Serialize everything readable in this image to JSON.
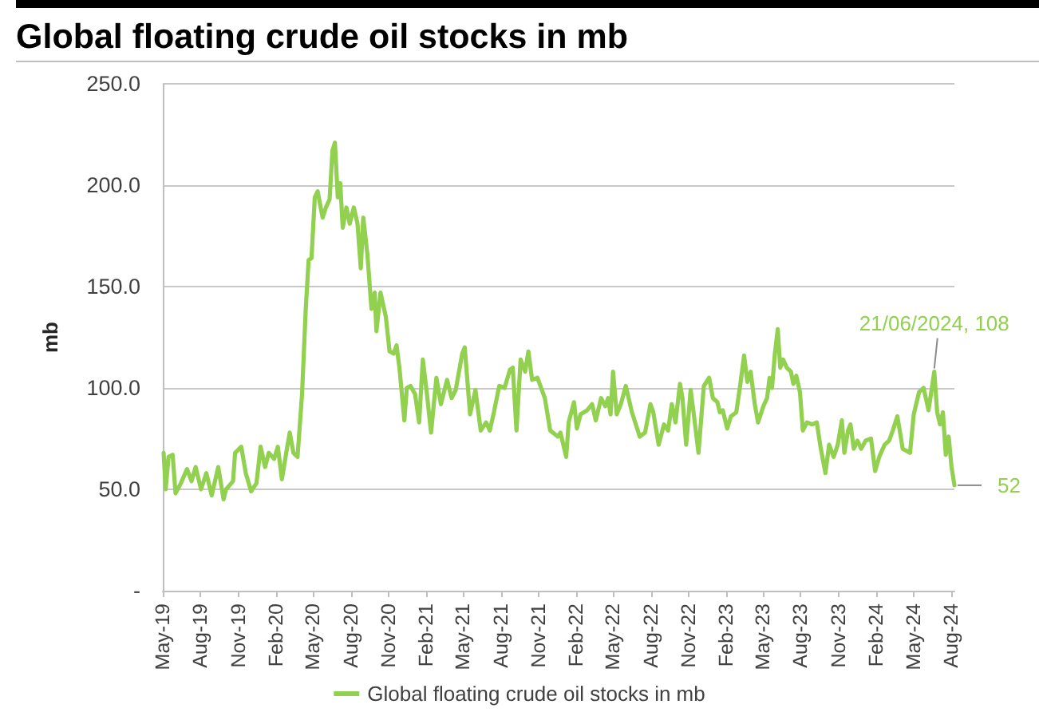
{
  "chart_data": {
    "type": "line",
    "title": "Global floating crude oil stocks in mb",
    "ylabel": "mb",
    "x": [
      "2019-05-03",
      "2019-05-08",
      "2019-05-15",
      "2019-05-25",
      "2019-06-01",
      "2019-06-14",
      "2019-06-29",
      "2019-07-10",
      "2019-07-20",
      "2019-08-02",
      "2019-08-15",
      "2019-08-28",
      "2019-09-13",
      "2019-09-26",
      "2019-10-02",
      "2019-10-19",
      "2019-10-24",
      "2019-11-08",
      "2019-11-19",
      "2019-12-02",
      "2019-12-15",
      "2019-12-25",
      "2020-01-05",
      "2020-01-14",
      "2020-01-27",
      "2020-02-05",
      "2020-02-15",
      "2020-02-28",
      "2020-03-05",
      "2020-03-14",
      "2020-03-24",
      "2020-04-04",
      "2020-04-13",
      "2020-04-20",
      "2020-04-27",
      "2020-05-05",
      "2020-05-12",
      "2020-05-24",
      "2020-06-01",
      "2020-06-10",
      "2020-06-17",
      "2020-06-23",
      "2020-06-30",
      "2020-07-06",
      "2020-07-12",
      "2020-07-21",
      "2020-07-29",
      "2020-08-08",
      "2020-08-17",
      "2020-08-25",
      "2020-08-31",
      "2020-09-10",
      "2020-09-20",
      "2020-09-28",
      "2020-10-02",
      "2020-10-12",
      "2020-10-25",
      "2020-11-03",
      "2020-11-13",
      "2020-11-20",
      "2020-11-27",
      "2020-12-09",
      "2020-12-15",
      "2020-12-24",
      "2021-01-04",
      "2021-01-14",
      "2021-01-23",
      "2021-02-02",
      "2021-02-12",
      "2021-02-25",
      "2021-03-08",
      "2021-03-23",
      "2021-04-03",
      "2021-04-13",
      "2021-04-29",
      "2021-05-05",
      "2021-05-18",
      "2021-05-31",
      "2021-06-13",
      "2021-06-26",
      "2021-07-05",
      "2021-07-15",
      "2021-07-28",
      "2021-08-10",
      "2021-08-23",
      "2021-08-30",
      "2021-09-08",
      "2021-09-18",
      "2021-09-29",
      "2021-10-07",
      "2021-10-16",
      "2021-10-29",
      "2021-11-16",
      "2021-11-29",
      "2021-12-18",
      "2021-12-24",
      "2022-01-07",
      "2022-01-13",
      "2022-01-26",
      "2022-02-02",
      "2022-02-11",
      "2022-02-27",
      "2022-03-11",
      "2022-03-20",
      "2022-04-02",
      "2022-04-12",
      "2022-04-19",
      "2022-04-25",
      "2022-05-01",
      "2022-05-10",
      "2022-05-20",
      "2022-06-01",
      "2022-06-16",
      "2022-07-05",
      "2022-07-18",
      "2022-07-31",
      "2022-08-07",
      "2022-08-20",
      "2022-09-02",
      "2022-09-12",
      "2022-09-21",
      "2022-09-30",
      "2022-10-11",
      "2022-10-17",
      "2022-10-26",
      "2022-11-06",
      "2022-11-13",
      "2022-11-25",
      "2022-12-08",
      "2022-12-21",
      "2022-12-30",
      "2023-01-10",
      "2023-01-16",
      "2023-01-23",
      "2023-02-03",
      "2023-02-12",
      "2023-02-25",
      "2023-03-07",
      "2023-03-16",
      "2023-03-24",
      "2023-04-01",
      "2023-04-11",
      "2023-04-19",
      "2023-05-02",
      "2023-05-11",
      "2023-05-17",
      "2023-05-23",
      "2023-05-30",
      "2023-06-06",
      "2023-06-12",
      "2023-06-19",
      "2023-06-28",
      "2023-07-08",
      "2023-07-14",
      "2023-07-21",
      "2023-07-30",
      "2023-08-06",
      "2023-08-16",
      "2023-08-29",
      "2023-09-09",
      "2023-09-18",
      "2023-09-30",
      "2023-10-09",
      "2023-10-20",
      "2023-10-30",
      "2023-11-09",
      "2023-11-15",
      "2023-11-24",
      "2023-11-30",
      "2023-12-08",
      "2023-12-17",
      "2023-12-26",
      "2024-01-06",
      "2024-01-19",
      "2024-01-29",
      "2024-02-08",
      "2024-02-21",
      "2024-03-03",
      "2024-03-12",
      "2024-03-23",
      "2024-03-29",
      "2024-04-05",
      "2024-04-23",
      "2024-05-02",
      "2024-05-15",
      "2024-05-26",
      "2024-06-07",
      "2024-06-21",
      "2024-06-28",
      "2024-07-05",
      "2024-07-12",
      "2024-07-19",
      "2024-07-26",
      "2024-08-02",
      "2024-08-09"
    ],
    "series": [
      {
        "name": "Global floating crude oil stocks in mb",
        "color": "#92d050",
        "values": [
          68,
          50,
          66,
          67,
          48,
          53,
          60,
          54,
          61,
          50,
          58,
          47,
          61,
          45,
          50,
          54,
          68,
          71,
          58,
          49,
          53,
          71,
          61,
          68,
          65,
          71,
          55,
          71,
          78,
          68,
          66,
          97,
          139,
          163,
          164,
          194,
          197,
          184,
          189,
          193,
          217,
          221,
          194,
          201,
          179,
          189,
          181,
          189,
          181,
          159,
          184,
          166,
          139,
          147,
          128,
          147,
          135,
          118,
          117,
          121,
          110,
          84,
          100,
          101,
          97,
          83,
          114,
          97,
          78,
          105,
          92,
          104,
          95,
          99,
          117,
          120,
          87,
          99,
          79,
          83,
          79,
          88,
          101,
          100,
          109,
          110,
          79,
          114,
          108,
          118,
          104,
          105,
          95,
          79,
          76,
          78,
          66,
          83,
          93,
          80,
          87,
          89,
          92,
          84,
          95,
          91,
          95,
          87,
          108,
          87,
          92,
          101,
          88,
          76,
          78,
          92,
          88,
          72,
          82,
          79,
          92,
          83,
          102,
          95,
          72,
          99,
          88,
          68,
          101,
          105,
          95,
          93,
          88,
          89,
          80,
          86,
          88,
          102,
          116,
          103,
          108,
          92,
          83,
          91,
          95,
          105,
          100,
          117,
          129,
          110,
          114,
          110,
          108,
          102,
          106,
          98,
          79,
          83,
          82,
          83,
          71,
          58,
          72,
          66,
          72,
          84,
          68,
          79,
          82,
          70,
          74,
          70,
          74,
          75,
          59,
          66,
          72,
          74,
          79,
          86,
          79,
          70,
          68,
          87,
          98,
          100,
          89,
          108,
          88,
          82,
          88,
          67,
          76,
          61,
          52
        ]
      }
    ],
    "xlim": [
      "2019-05-01",
      "2024-08-09"
    ],
    "xticks": [
      {
        "value": "2019-05-01",
        "label": "May-19"
      },
      {
        "value": "2019-08-01",
        "label": "Aug-19"
      },
      {
        "value": "2019-11-01",
        "label": "Nov-19"
      },
      {
        "value": "2020-02-01",
        "label": "Feb-20"
      },
      {
        "value": "2020-05-01",
        "label": "May-20"
      },
      {
        "value": "2020-08-01",
        "label": "Aug-20"
      },
      {
        "value": "2020-11-01",
        "label": "Nov-20"
      },
      {
        "value": "2021-02-01",
        "label": "Feb-21"
      },
      {
        "value": "2021-05-01",
        "label": "May-21"
      },
      {
        "value": "2021-08-01",
        "label": "Aug-21"
      },
      {
        "value": "2021-11-01",
        "label": "Nov-21"
      },
      {
        "value": "2022-02-01",
        "label": "Feb-22"
      },
      {
        "value": "2022-05-01",
        "label": "May-22"
      },
      {
        "value": "2022-08-01",
        "label": "Aug-22"
      },
      {
        "value": "2022-11-01",
        "label": "Nov-22"
      },
      {
        "value": "2023-02-01",
        "label": "Feb-23"
      },
      {
        "value": "2023-05-01",
        "label": "May-23"
      },
      {
        "value": "2023-08-01",
        "label": "Aug-23"
      },
      {
        "value": "2023-11-01",
        "label": "Nov-23"
      },
      {
        "value": "2024-02-01",
        "label": "Feb-24"
      },
      {
        "value": "2024-05-01",
        "label": "May-24"
      },
      {
        "value": "2024-08-01",
        "label": "Aug-24"
      }
    ],
    "ylim": [
      0,
      250
    ],
    "yticks": [
      {
        "value": 0,
        "label": "-"
      },
      {
        "value": 50,
        "label": "50.0"
      },
      {
        "value": 100,
        "label": "100.0"
      },
      {
        "value": 150,
        "label": "150.0"
      },
      {
        "value": 200,
        "label": "200.0"
      },
      {
        "value": 250,
        "label": "250.0"
      }
    ],
    "grid": "y",
    "legend": "bottom",
    "annotations": [
      {
        "text": "21/06/2024, 108",
        "x": "2024-06-21",
        "y": 108
      },
      {
        "text": "52",
        "x": "2024-08-09",
        "y": 52
      }
    ]
  }
}
